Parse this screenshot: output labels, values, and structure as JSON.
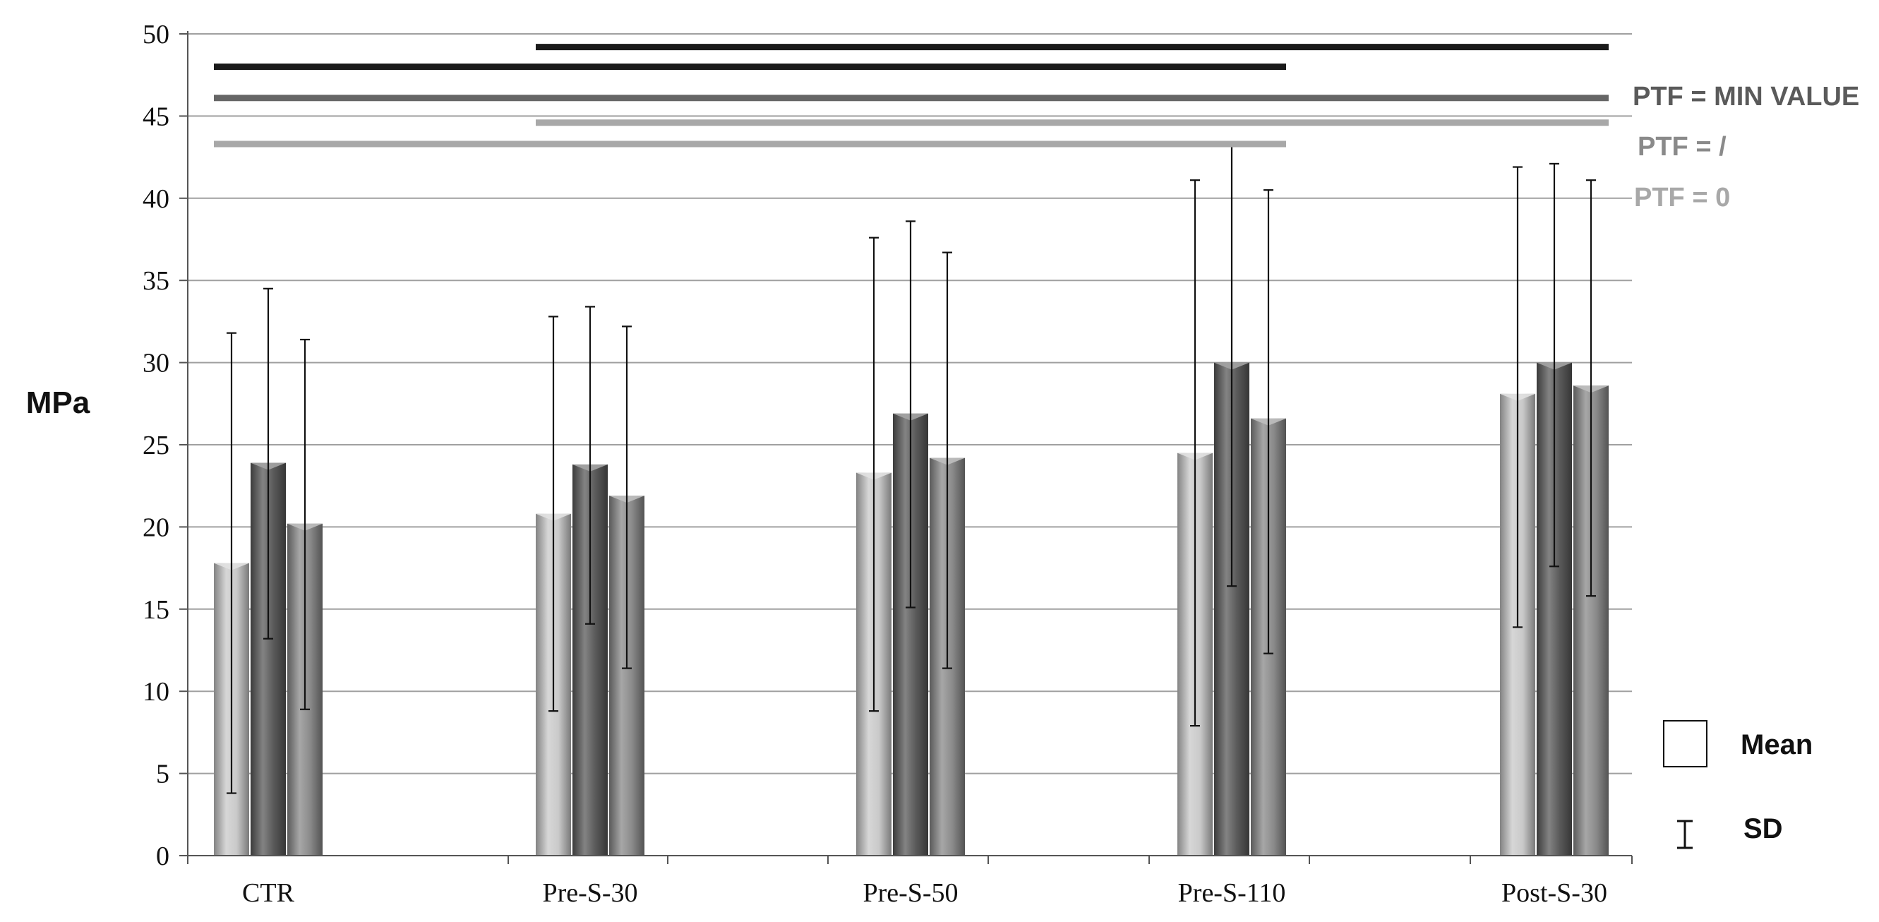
{
  "chart_data": {
    "type": "bar",
    "ylabel": "MPa",
    "ylim": [
      0,
      50
    ],
    "yticks": [
      0,
      5,
      10,
      15,
      20,
      25,
      30,
      35,
      40,
      45,
      50
    ],
    "categories": [
      "CTR",
      "Pre-S-30",
      "Pre-S-50",
      "Pre-S-110",
      "Post-S-30"
    ],
    "grid": true,
    "series": [
      {
        "name": "PTF = 0",
        "color": "#c9c9c9",
        "values": [
          17.8,
          20.8,
          23.3,
          24.5,
          28.1
        ],
        "sd_low": [
          3.8,
          8.8,
          8.8,
          7.9,
          13.9
        ],
        "sd_high": [
          31.8,
          32.8,
          37.6,
          41.1,
          41.9
        ]
      },
      {
        "name": "PTF = MIN VALUE",
        "color": "#5a5a5a",
        "values": [
          23.9,
          23.8,
          26.9,
          30.0,
          30.0
        ],
        "sd_low": [
          13.2,
          14.1,
          15.1,
          16.4,
          17.6
        ],
        "sd_high": [
          34.5,
          33.4,
          38.6,
          43.4,
          42.1
        ]
      },
      {
        "name": "PTF = /",
        "color": "#8a8a8a",
        "values": [
          20.2,
          21.9,
          24.2,
          26.6,
          28.6
        ],
        "sd_low": [
          8.9,
          11.4,
          11.4,
          12.3,
          15.8
        ],
        "sd_high": [
          31.4,
          32.2,
          36.7,
          40.5,
          41.1
        ]
      }
    ],
    "significance_lines": [
      {
        "from": "Pre-S-30",
        "to": "Post-S-30",
        "level": 49.2,
        "series": "PTF = MIN VALUE",
        "color": "#1a1a1a"
      },
      {
        "from": "CTR",
        "to": "Pre-S-110",
        "level": 48.0,
        "series": "PTF = MIN VALUE",
        "color": "#1a1a1a"
      },
      {
        "from": "CTR",
        "to": "Post-S-30",
        "level": 46.1,
        "series": "PTF = MIN VALUE",
        "color": "#666666"
      },
      {
        "from": "Pre-S-30",
        "to": "Post-S-30",
        "level": 44.6,
        "series": "PTF = /",
        "color": "#a8a8a8"
      },
      {
        "from": "CTR",
        "to": "Pre-S-110",
        "level": 43.3,
        "series": "PTF = 0",
        "color": "#a8a8a8"
      }
    ],
    "line_legend": [
      {
        "label": "PTF = MIN VALUE",
        "color": "#5a5a5a"
      },
      {
        "label": "PTF = /",
        "color": "#8a8a8a"
      },
      {
        "label": "PTF = 0",
        "color": "#a8a8a8"
      }
    ],
    "symbol_legend": {
      "mean_label": "Mean",
      "sd_label": "SD"
    }
  }
}
